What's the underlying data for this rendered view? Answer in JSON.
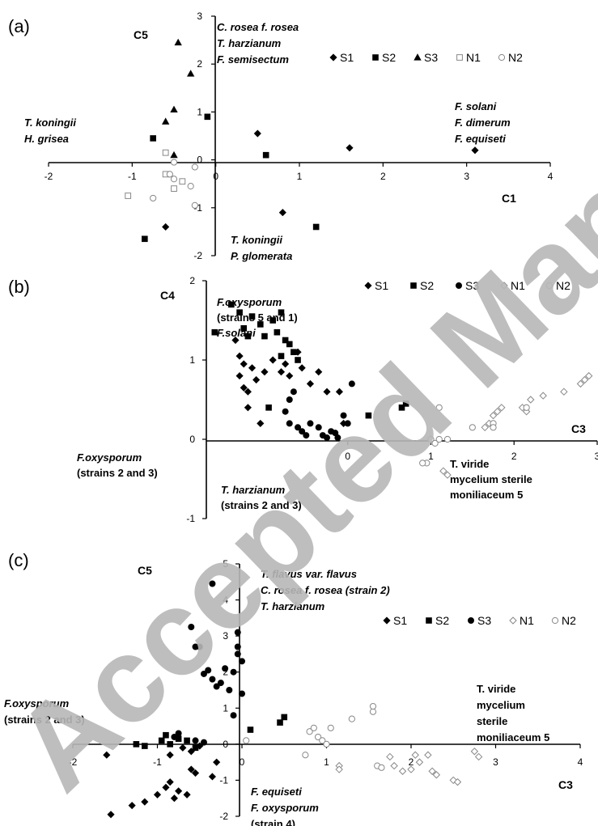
{
  "watermark": {
    "text": "Accepted Manuscript",
    "color": "#b8b8b8"
  },
  "chart_data": [
    {
      "id": "a",
      "type": "scatter",
      "panel_label": "(a)",
      "xlabel": "C1",
      "ylabel": "C5",
      "xlim": [
        -2,
        4
      ],
      "ylim": [
        -2,
        3
      ],
      "xticks": [
        "-2",
        "-1",
        "0",
        "1",
        "2",
        "3",
        "4"
      ],
      "yticks": [
        "-2",
        "-1",
        "0",
        "1",
        "2",
        "3"
      ],
      "legend": [
        "S1",
        "S2",
        "S3",
        "N1",
        "N2"
      ],
      "series": [
        {
          "name": "S1",
          "marker": "diamond-filled",
          "points": [
            [
              0.5,
              0.55
            ],
            [
              1.6,
              0.25
            ],
            [
              3.1,
              0.2
            ],
            [
              0.8,
              -1.1
            ],
            [
              -0.6,
              -1.4
            ]
          ]
        },
        {
          "name": "S2",
          "marker": "square-filled",
          "points": [
            [
              -0.75,
              0.45
            ],
            [
              -0.1,
              0.9
            ],
            [
              0.6,
              0.1
            ],
            [
              1.2,
              -1.4
            ],
            [
              -0.85,
              -1.65
            ]
          ]
        },
        {
          "name": "S3",
          "marker": "triangle-filled",
          "points": [
            [
              -0.45,
              2.45
            ],
            [
              -0.3,
              1.8
            ],
            [
              -0.5,
              1.05
            ],
            [
              -0.6,
              0.8
            ],
            [
              -0.5,
              0.1
            ]
          ]
        },
        {
          "name": "N1",
          "marker": "square-open",
          "points": [
            [
              -1.05,
              -0.75
            ],
            [
              -0.4,
              -0.45
            ],
            [
              -0.5,
              -0.6
            ],
            [
              -0.6,
              0.15
            ],
            [
              -0.6,
              -0.3
            ]
          ]
        },
        {
          "name": "N2",
          "marker": "circle-open",
          "points": [
            [
              -0.75,
              -0.8
            ],
            [
              -0.55,
              -0.3
            ],
            [
              -0.5,
              -0.4
            ],
            [
              -0.3,
              -0.55
            ],
            [
              -0.25,
              -0.15
            ],
            [
              -0.5,
              -0.05
            ],
            [
              -0.25,
              -0.95
            ]
          ]
        }
      ],
      "annotations": [
        {
          "lines": [
            "C. rosea f. rosea",
            "T. harzianum",
            "F. semisectum"
          ],
          "italic": true,
          "bold": true
        },
        {
          "lines": [
            "T. koningii",
            "H. grisea"
          ],
          "italic": true,
          "bold": true
        },
        {
          "lines": [
            "F. solani",
            "F. dimerum",
            "F. equiseti"
          ],
          "italic": true,
          "bold": true
        },
        {
          "lines": [
            "T. koningii",
            "P. glomerata"
          ],
          "italic": true,
          "bold": true
        }
      ]
    },
    {
      "id": "b",
      "type": "scatter",
      "panel_label": "(b)",
      "xlabel": "C3",
      "ylabel": "C4",
      "xlim": [
        -1.7,
        3
      ],
      "ylim": [
        -1,
        2
      ],
      "xticks": [
        "0",
        "1",
        "2",
        "3"
      ],
      "yticks": [
        "-1",
        "0",
        "1",
        "2"
      ],
      "legend": [
        "S1",
        "S2",
        "S3",
        "N1",
        "N2"
      ],
      "series": [
        {
          "name": "S1",
          "marker": "diamond-filled",
          "points": [
            [
              -1.35,
              1.25
            ],
            [
              -1.3,
              1.05
            ],
            [
              -1.25,
              0.95
            ],
            [
              -1.3,
              0.8
            ],
            [
              -1.25,
              0.65
            ],
            [
              -1.2,
              0.6
            ],
            [
              -1.15,
              0.9
            ],
            [
              -1.1,
              0.75
            ],
            [
              -1.0,
              0.85
            ],
            [
              -0.9,
              1.0
            ],
            [
              -0.8,
              0.85
            ],
            [
              -0.75,
              0.95
            ],
            [
              -0.7,
              0.8
            ],
            [
              -0.6,
              1.1
            ],
            [
              -0.55,
              0.9
            ],
            [
              -0.45,
              0.7
            ],
            [
              -0.35,
              0.85
            ],
            [
              -0.25,
              0.6
            ],
            [
              -0.1,
              0.6
            ],
            [
              -0.05,
              0.2
            ],
            [
              -1.2,
              0.4
            ],
            [
              -1.05,
              0.2
            ]
          ]
        },
        {
          "name": "S2",
          "marker": "square-filled",
          "points": [
            [
              -1.6,
              1.35
            ],
            [
              -1.4,
              1.7
            ],
            [
              -1.3,
              1.6
            ],
            [
              -1.25,
              1.4
            ],
            [
              -1.2,
              1.3
            ],
            [
              -1.15,
              1.55
            ],
            [
              -1.05,
              1.45
            ],
            [
              -1.0,
              1.3
            ],
            [
              -0.9,
              1.5
            ],
            [
              -0.85,
              1.35
            ],
            [
              -0.8,
              1.6
            ],
            [
              -0.75,
              1.25
            ],
            [
              -0.7,
              1.2
            ],
            [
              -0.65,
              1.1
            ],
            [
              -0.6,
              1.0
            ],
            [
              -0.8,
              1.05
            ],
            [
              -0.95,
              0.4
            ],
            [
              0.25,
              0.3
            ],
            [
              0.65,
              0.4
            ],
            [
              0.7,
              0.45
            ]
          ]
        },
        {
          "name": "S3",
          "marker": "circle-filled",
          "points": [
            [
              -0.65,
              0.6
            ],
            [
              -0.7,
              0.5
            ],
            [
              -0.75,
              0.35
            ],
            [
              -0.7,
              0.2
            ],
            [
              -0.6,
              0.15
            ],
            [
              -0.55,
              0.1
            ],
            [
              -0.5,
              0.05
            ],
            [
              -0.45,
              0.2
            ],
            [
              -0.35,
              0.15
            ],
            [
              -0.3,
              0.05
            ],
            [
              -0.25,
              0.02
            ],
            [
              -0.2,
              0.1
            ],
            [
              -0.15,
              0.08
            ],
            [
              -0.12,
              0.02
            ],
            [
              -0.05,
              0.3
            ],
            [
              0.0,
              0.2
            ],
            [
              0.05,
              0.7
            ]
          ]
        },
        {
          "name": "N1",
          "marker": "diamond-open",
          "points": [
            [
              1.65,
              0.15
            ],
            [
              1.7,
              0.2
            ],
            [
              1.75,
              0.3
            ],
            [
              1.8,
              0.35
            ],
            [
              1.85,
              0.4
            ],
            [
              2.1,
              0.4
            ],
            [
              2.15,
              0.35
            ],
            [
              2.2,
              0.5
            ],
            [
              2.35,
              0.55
            ],
            [
              2.6,
              0.6
            ],
            [
              2.8,
              0.7
            ],
            [
              2.85,
              0.75
            ],
            [
              2.9,
              0.8
            ],
            [
              1.2,
              -0.45
            ],
            [
              1.15,
              -0.4
            ]
          ]
        },
        {
          "name": "N2",
          "marker": "circle-open",
          "points": [
            [
              0.95,
              -0.3
            ],
            [
              0.9,
              -0.3
            ],
            [
              1.1,
              0.4
            ],
            [
              1.0,
              0.0
            ],
            [
              1.05,
              -0.05
            ],
            [
              1.1,
              0.0
            ],
            [
              1.2,
              0.0
            ],
            [
              1.5,
              0.15
            ],
            [
              1.75,
              0.2
            ],
            [
              1.75,
              0.15
            ],
            [
              2.15,
              0.4
            ]
          ]
        }
      ],
      "annotations": [
        {
          "lines": [
            "F.oxysporum",
            "(strains 5 and 1)",
            "F.solani"
          ],
          "italic": true,
          "bold": true
        },
        {
          "lines": [
            "F.oxysporum",
            "(strains 2 and 3)"
          ],
          "italic": true,
          "bold": true
        },
        {
          "lines": [
            "T. harzianum",
            "(strains 2 and 3)"
          ],
          "italic": true,
          "bold": true
        },
        {
          "lines": [
            "T. viride",
            "mycelium sterile",
            "moniliaceum 5"
          ],
          "italic": false,
          "bold": true
        }
      ]
    },
    {
      "id": "c",
      "type": "scatter",
      "panel_label": "(c)",
      "xlabel": "C3",
      "ylabel": "C5",
      "xlim": [
        -2,
        4
      ],
      "ylim": [
        -2,
        5
      ],
      "xticks": [
        "-2",
        "-1",
        "0",
        "1",
        "2",
        "3",
        "4"
      ],
      "yticks": [
        "-2",
        "-1",
        "0",
        "1",
        "2",
        "3",
        "4",
        "5"
      ],
      "legend": [
        "S1",
        "S2",
        "S3",
        "N1",
        "N2"
      ],
      "series": [
        {
          "name": "S1",
          "marker": "diamond-filled",
          "points": [
            [
              -1.6,
              -0.3
            ],
            [
              -1.55,
              -1.95
            ],
            [
              -1.3,
              -1.7
            ],
            [
              -1.15,
              -1.6
            ],
            [
              -1.0,
              -1.4
            ],
            [
              -0.9,
              -1.2
            ],
            [
              -0.8,
              -1.5
            ],
            [
              -0.85,
              -1.05
            ],
            [
              -0.75,
              -1.3
            ],
            [
              -0.65,
              -1.4
            ],
            [
              -0.6,
              -0.7
            ],
            [
              -0.55,
              -0.8
            ],
            [
              -0.35,
              -0.9
            ],
            [
              -0.3,
              -0.5
            ],
            [
              -0.85,
              -0.3
            ],
            [
              -0.7,
              -0.1
            ],
            [
              -0.6,
              -0.2
            ],
            [
              -0.5,
              -0.05
            ]
          ]
        },
        {
          "name": "S2",
          "marker": "square-filled",
          "points": [
            [
              -1.25,
              0.0
            ],
            [
              -1.15,
              -0.05
            ],
            [
              -0.95,
              0.1
            ],
            [
              -0.9,
              0.25
            ],
            [
              -0.85,
              0.0
            ],
            [
              -0.75,
              0.15
            ],
            [
              -0.65,
              0.1
            ],
            [
              -0.55,
              -0.1
            ],
            [
              0.1,
              0.4
            ],
            [
              0.45,
              0.6
            ],
            [
              0.5,
              0.75
            ]
          ]
        },
        {
          "name": "S3",
          "marker": "circle-filled",
          "points": [
            [
              -0.6,
              3.25
            ],
            [
              -0.55,
              2.7
            ],
            [
              -0.5,
              2.7
            ],
            [
              -0.45,
              1.95
            ],
            [
              -0.4,
              2.05
            ],
            [
              -0.35,
              1.8
            ],
            [
              -0.3,
              1.6
            ],
            [
              -0.25,
              1.7
            ],
            [
              -0.2,
              2.1
            ],
            [
              -0.15,
              1.5
            ],
            [
              -0.1,
              2.0
            ],
            [
              -0.05,
              2.7
            ],
            [
              0.0,
              1.4
            ],
            [
              -0.05,
              2.5
            ],
            [
              0.0,
              2.3
            ],
            [
              -0.1,
              0.8
            ],
            [
              -0.55,
              0.1
            ],
            [
              -0.45,
              0.05
            ],
            [
              -0.8,
              0.2
            ],
            [
              -0.75,
              0.3
            ],
            [
              -0.35,
              4.45
            ],
            [
              -0.05,
              3.1
            ]
          ]
        },
        {
          "name": "N1",
          "marker": "diamond-open",
          "points": [
            [
              1.15,
              -0.6
            ],
            [
              1.15,
              -0.7
            ],
            [
              1.75,
              -0.35
            ],
            [
              1.8,
              -0.6
            ],
            [
              1.9,
              -0.75
            ],
            [
              2.0,
              -0.7
            ],
            [
              2.05,
              -0.3
            ],
            [
              2.1,
              -0.5
            ],
            [
              2.2,
              -0.3
            ],
            [
              2.25,
              -0.75
            ],
            [
              2.3,
              -0.85
            ],
            [
              2.5,
              -1.0
            ],
            [
              2.55,
              -1.05
            ],
            [
              2.75,
              -0.2
            ],
            [
              2.8,
              -0.35
            ]
          ]
        },
        {
          "name": "N2",
          "marker": "circle-open",
          "points": [
            [
              0.05,
              0.1
            ],
            [
              0.75,
              -0.3
            ],
            [
              0.8,
              0.35
            ],
            [
              0.85,
              0.45
            ],
            [
              0.9,
              0.2
            ],
            [
              0.95,
              0.1
            ],
            [
              1.0,
              0.0
            ],
            [
              1.05,
              0.45
            ],
            [
              1.3,
              0.7
            ],
            [
              1.55,
              0.9
            ],
            [
              1.55,
              1.05
            ],
            [
              1.6,
              -0.6
            ],
            [
              1.65,
              -0.65
            ]
          ]
        }
      ],
      "annotations": [
        {
          "lines": [
            "T. flavus var. flavus",
            "C. rosea f. rosea (strain 2)",
            "T. harzianum"
          ],
          "italic": true,
          "bold": true
        },
        {
          "lines": [
            "F.oxysporum",
            "(strains 2 and 3)"
          ],
          "italic": true,
          "bold": true
        },
        {
          "lines": [
            "T. viride",
            "mycelium",
            "sterile",
            "moniliaceum 5"
          ],
          "italic": false,
          "bold": true
        },
        {
          "lines": [
            "F. equiseti",
            "F. oxysporum",
            "(strain  4)"
          ],
          "italic": true,
          "bold": true
        }
      ]
    }
  ]
}
